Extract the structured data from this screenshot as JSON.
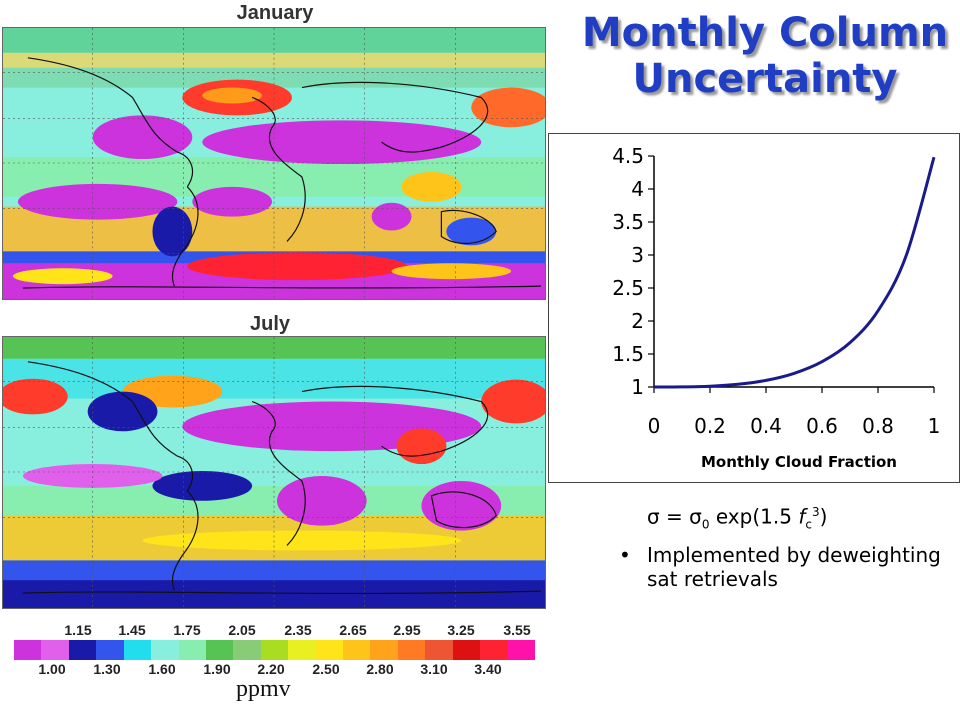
{
  "maps": {
    "top_title": "January",
    "bottom_title": "July"
  },
  "slide_title": [
    "Monthly Column",
    "Uncertainty"
  ],
  "colorbar": {
    "colors": [
      "#cc33dd",
      "#e060ec",
      "#1a1aa8",
      "#3355ee",
      "#22ddee",
      "#88eedd",
      "#88eeb0",
      "#55c455",
      "#88cc77",
      "#aadd22",
      "#e8f022",
      "#ffe41a",
      "#ffc419",
      "#ffa31a",
      "#ff7a22",
      "#ee5533",
      "#dd1111",
      "#ff2233",
      "#ff11aa"
    ],
    "upper_ticks": [
      "1.15",
      "1.45",
      "1.75",
      "2.05",
      "2.35",
      "2.65",
      "2.95",
      "3.25",
      "3.55"
    ],
    "lower_ticks": [
      "1.00",
      "1.30",
      "1.60",
      "1.90",
      "2.20",
      "2.50",
      "2.80",
      "3.10",
      "3.40"
    ],
    "unit": "ppmv"
  },
  "chart_data": {
    "type": "line",
    "title": "",
    "xlabel": "Monthly Cloud Fraction",
    "ylabel": "",
    "xlim": [
      0,
      1
    ],
    "ylim": [
      1,
      4.5
    ],
    "x_ticks": [
      "0",
      "0.2",
      "0.4",
      "0.6",
      "0.8",
      "1"
    ],
    "y_ticks": [
      "1",
      "1.5",
      "2",
      "2.5",
      "3",
      "3.5",
      "4",
      "4.5"
    ],
    "series": [
      {
        "color": "#1a1a8c",
        "x": [
          0,
          0.1,
          0.2,
          0.3,
          0.4,
          0.5,
          0.6,
          0.7,
          0.8,
          0.9,
          1.0
        ],
        "y": [
          1.0,
          1.0015,
          1.012,
          1.041,
          1.1,
          1.206,
          1.383,
          1.672,
          2.154,
          2.983,
          4.482
        ]
      }
    ]
  },
  "bullets": [
    {
      "marker": "",
      "formula": {
        "lhs": "σ",
        "eq": " = ",
        "sigma0": "σ",
        "sub0": "0",
        "text1": " exp(1.5 ",
        "f": "f",
        "subc": "c",
        "sup": "3",
        "close": ")"
      }
    },
    {
      "marker": "•",
      "text": "Implemented by deweighting sat retrievals"
    }
  ]
}
